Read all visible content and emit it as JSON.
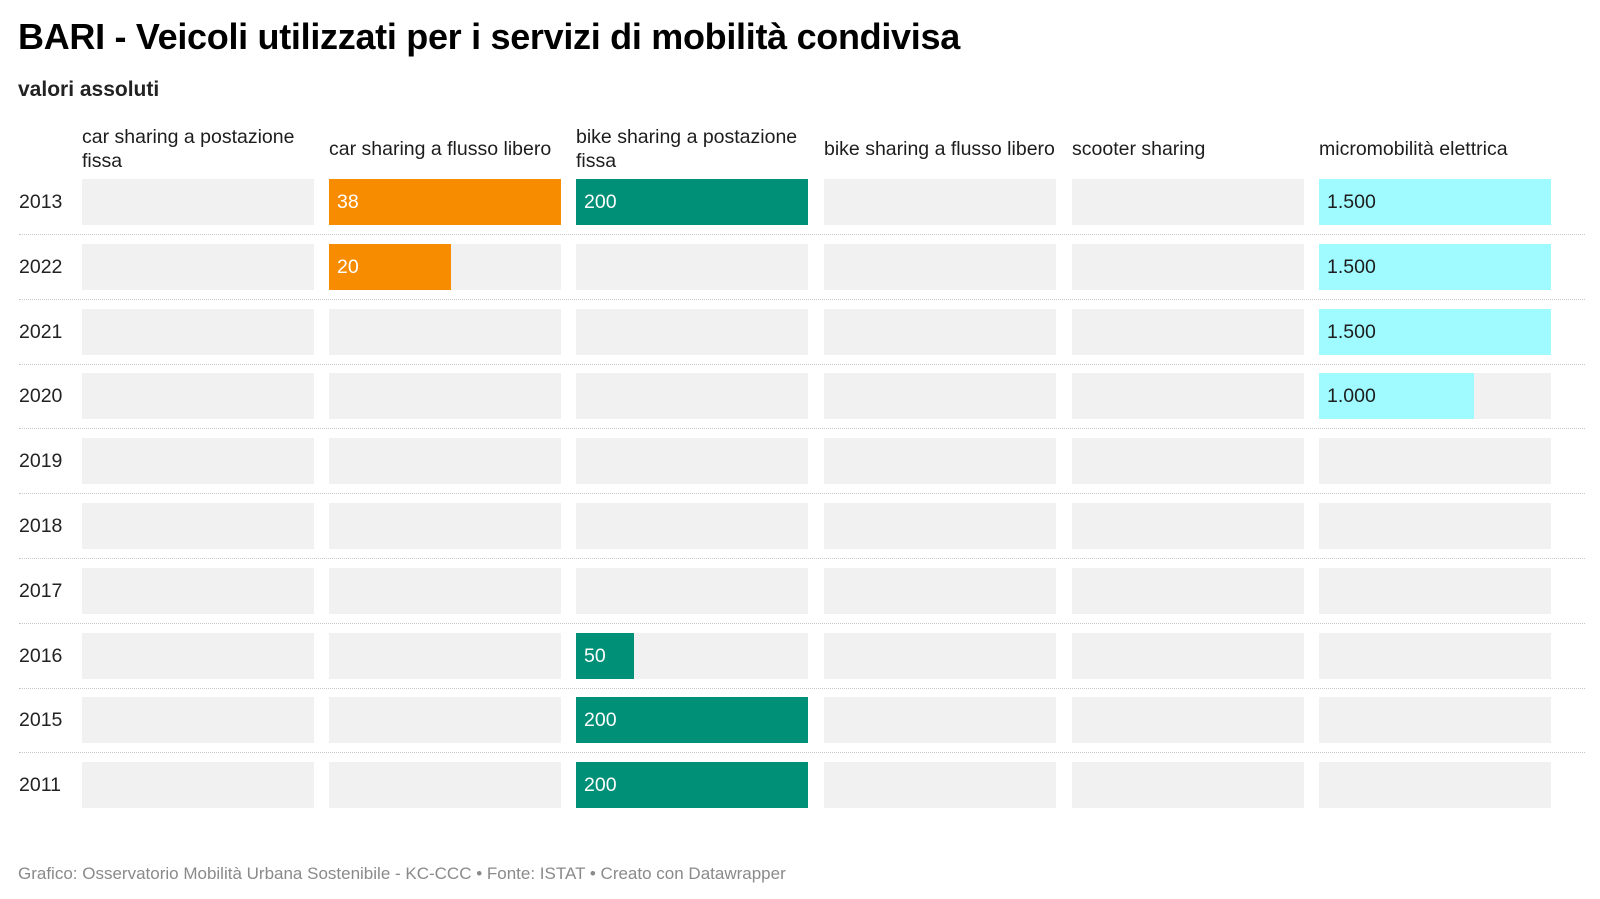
{
  "title": "BARI - Veicoli utilizzati per i servizi di mobilità condivisa",
  "subtitle": "valori assoluti",
  "footer": "Grafico: Osservatorio Mobilità Urbana Sostenibile - KC-CCC • Fonte: ISTAT • Creato con Datawrapper",
  "chart_data": {
    "type": "bar",
    "categories": [
      "2013",
      "2022",
      "2021",
      "2020",
      "2019",
      "2018",
      "2017",
      "2016",
      "2015",
      "2011"
    ],
    "series": [
      {
        "name": "car sharing a postazione fissa",
        "color": "#f1f1f1",
        "max": 200,
        "values": [
          null,
          null,
          null,
          null,
          null,
          null,
          null,
          null,
          null,
          null
        ],
        "labels": [
          "",
          "",
          "",
          "",
          "",
          "",
          "",
          "",
          "",
          ""
        ]
      },
      {
        "name": "car sharing a flusso libero",
        "color": "#f78c00",
        "max": 38,
        "values": [
          38,
          20,
          null,
          null,
          null,
          null,
          null,
          null,
          null,
          null
        ],
        "labels": [
          "38",
          "20",
          "",
          "",
          "",
          "",
          "",
          "",
          "",
          ""
        ]
      },
      {
        "name": "bike sharing a postazione fissa",
        "color": "#008f77",
        "max": 200,
        "values": [
          200,
          null,
          null,
          null,
          null,
          null,
          null,
          50,
          200,
          200
        ],
        "labels": [
          "200",
          "",
          "",
          "",
          "",
          "",
          "",
          "50",
          "200",
          "200"
        ]
      },
      {
        "name": "bike sharing a flusso libero",
        "color": "#f1f1f1",
        "max": 200,
        "values": [
          null,
          null,
          null,
          null,
          null,
          null,
          null,
          null,
          null,
          null
        ],
        "labels": [
          "",
          "",
          "",
          "",
          "",
          "",
          "",
          "",
          "",
          ""
        ]
      },
      {
        "name": "scooter sharing",
        "color": "#f1f1f1",
        "max": 200,
        "values": [
          null,
          null,
          null,
          null,
          null,
          null,
          null,
          null,
          null,
          null
        ],
        "labels": [
          "",
          "",
          "",
          "",
          "",
          "",
          "",
          "",
          "",
          ""
        ]
      },
      {
        "name": "micromobilità elettrica",
        "color": "#9ffbff",
        "max": 1500,
        "values": [
          1500,
          1500,
          1500,
          1000,
          null,
          null,
          null,
          null,
          null,
          null
        ],
        "labels": [
          "1.500",
          "1.500",
          "1.500",
          "1.000",
          "",
          "",
          "",
          "",
          "",
          ""
        ]
      }
    ],
    "label_colors": {
      "#f78c00": "#ffffff",
      "#008f77": "#ffffff",
      "#9ffbff": "#1d1d1d"
    },
    "grid": false,
    "legend": "column headers"
  }
}
